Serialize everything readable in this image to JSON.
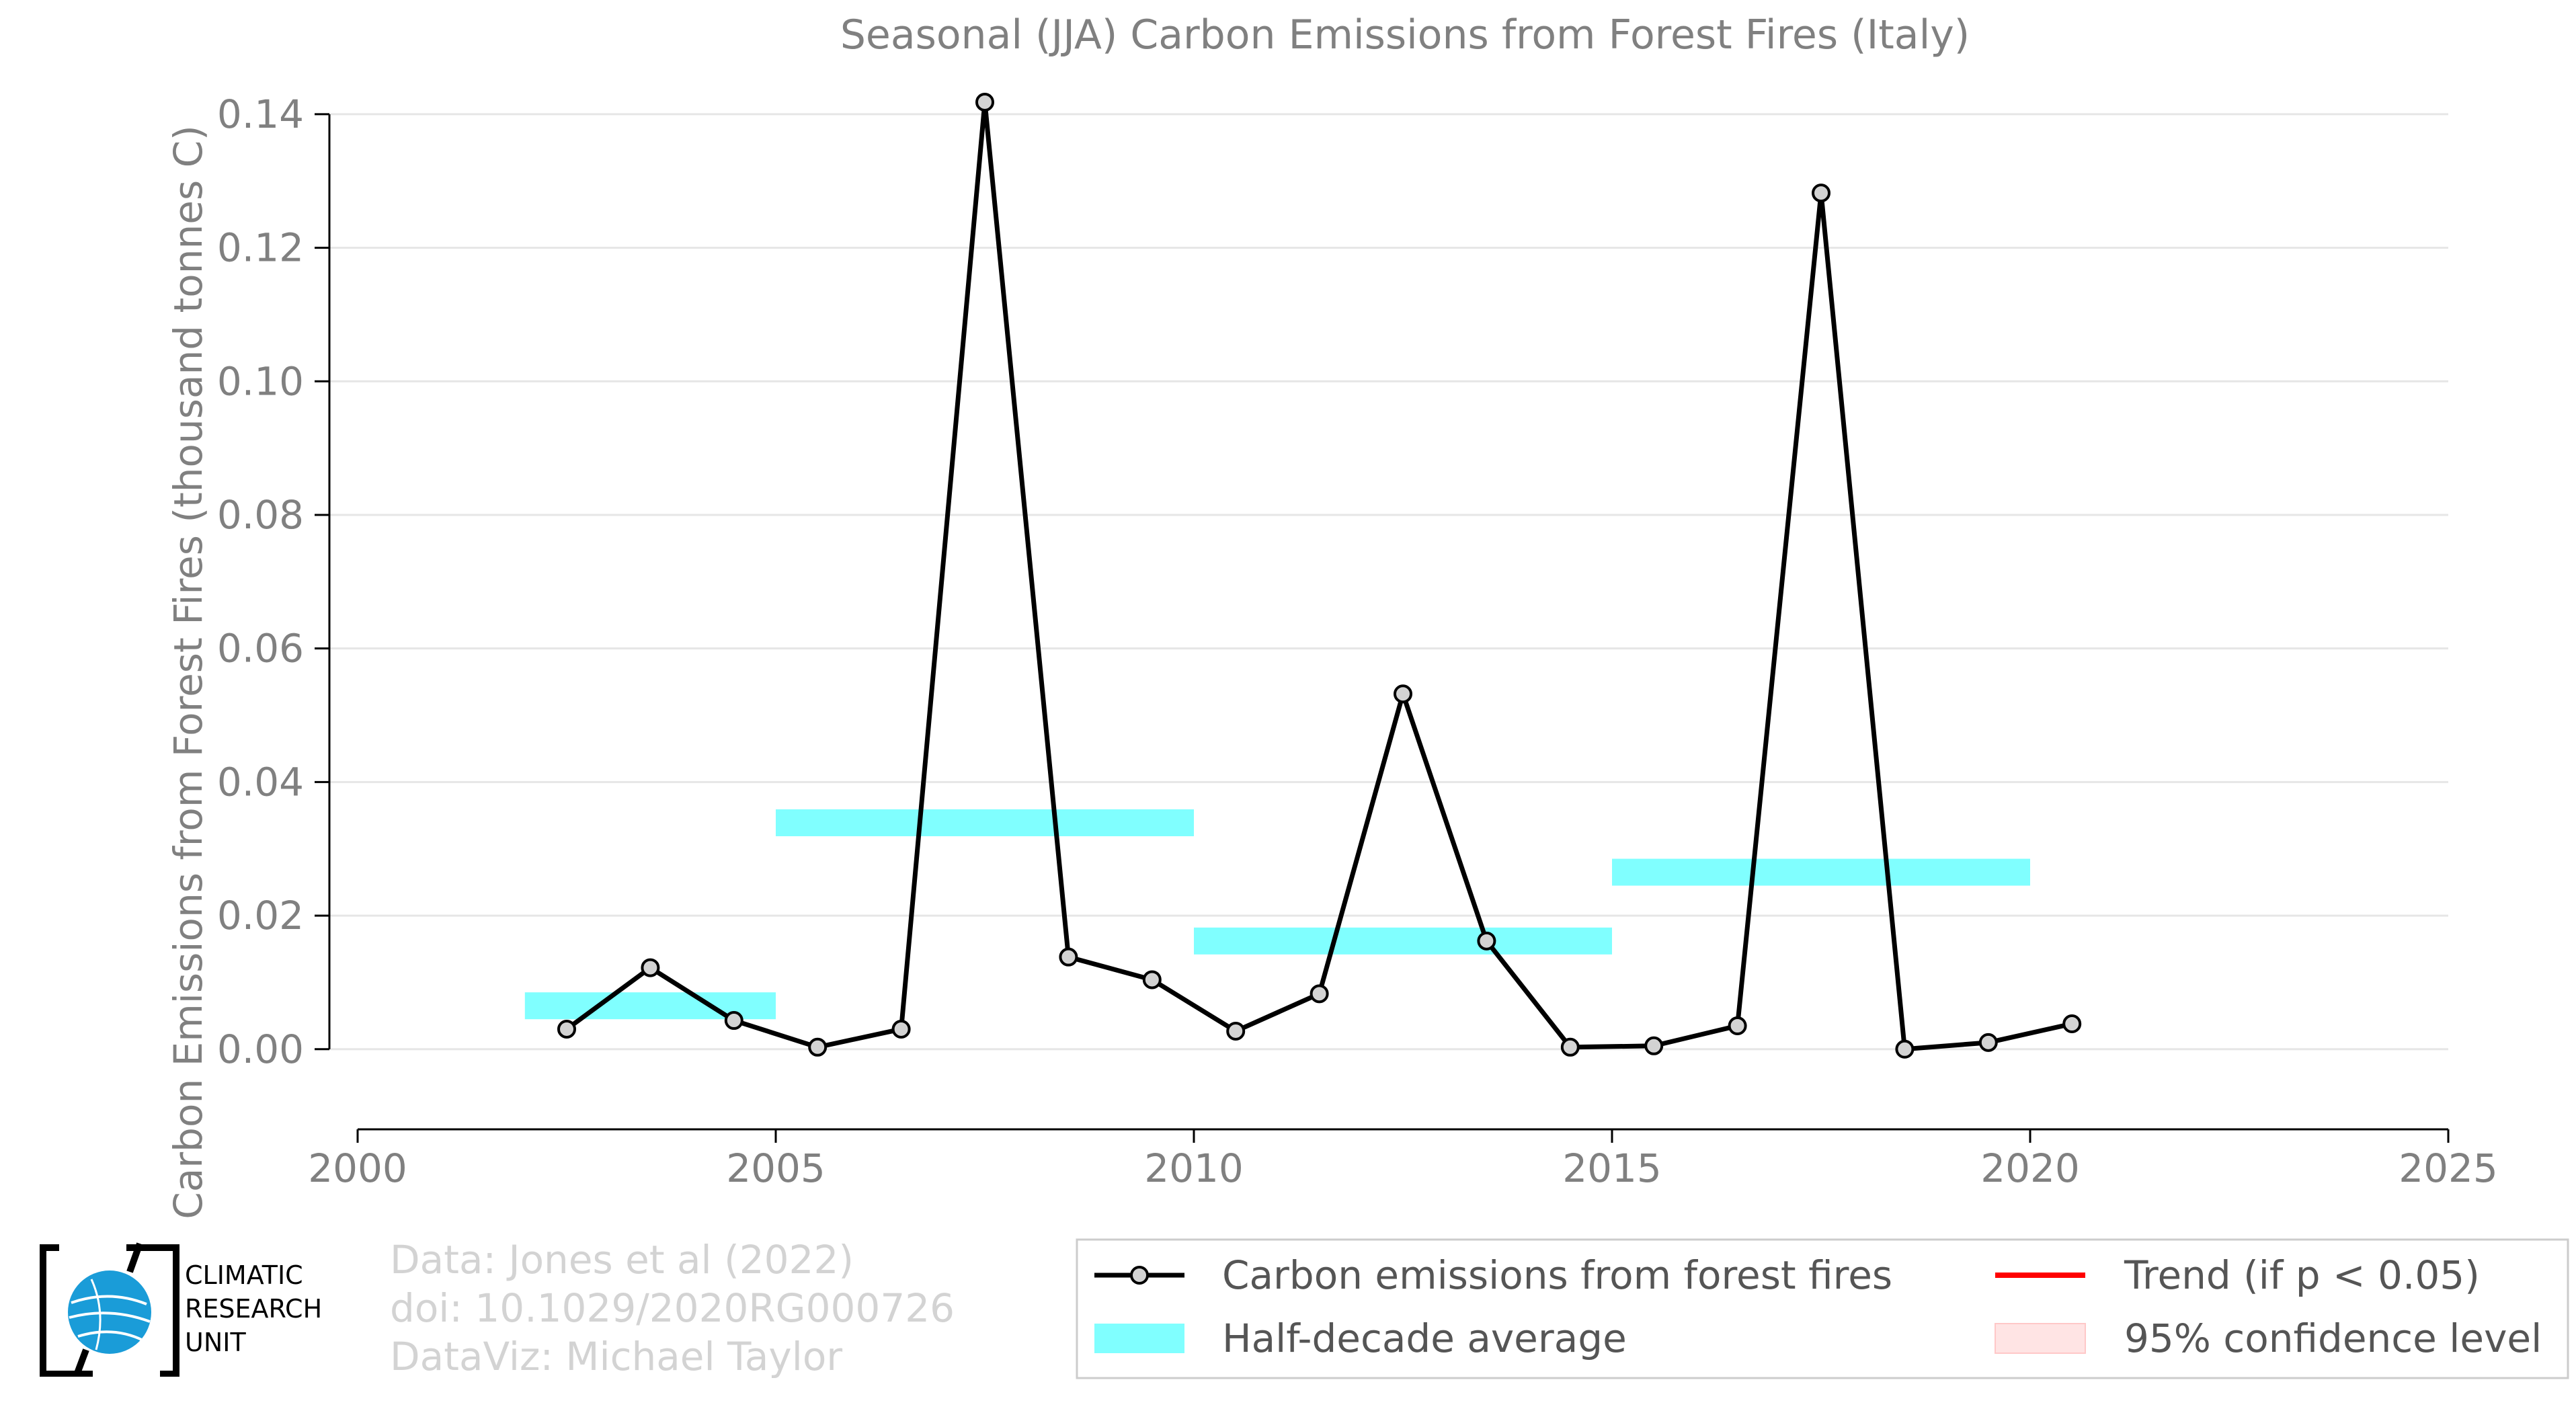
{
  "chart_data": {
    "type": "line",
    "title": "Seasonal (JJA) Carbon Emissions from Forest Fires (Italy)",
    "xlabel": "",
    "ylabel": "Carbon Emissions from Forest Fires (thousand tonnes C)",
    "xlim": [
      2000,
      2025
    ],
    "ylim": [
      -0.012,
      0.142
    ],
    "x_ticks": [
      "2000",
      "2005",
      "2010",
      "2015",
      "2020",
      "2025"
    ],
    "y_ticks": [
      "0.00",
      "0.02",
      "0.04",
      "0.06",
      "0.08",
      "0.10",
      "0.12",
      "0.14"
    ],
    "grid": "horizontal",
    "series": [
      {
        "name": "Carbon emissions from forest fires",
        "color": "#000000",
        "marker_fill": "#d3d3d3",
        "x": [
          2002.5,
          2003.5,
          2004.5,
          2005.5,
          2006.5,
          2007.5,
          2008.5,
          2009.5,
          2010.5,
          2011.5,
          2012.5,
          2013.5,
          2014.5,
          2015.5,
          2016.5,
          2017.5,
          2018.5,
          2019.5,
          2020.5
        ],
        "y": [
          0.003,
          0.0122,
          0.0043,
          0.0003,
          0.003,
          0.1418,
          0.0138,
          0.0104,
          0.0027,
          0.0083,
          0.0532,
          0.0162,
          0.0003,
          0.0005,
          0.0035,
          0.1282,
          0.0,
          0.001,
          0.0038
        ]
      }
    ],
    "half_decade_average": {
      "name": "Half-decade average",
      "color": "#80ffff",
      "segments": [
        {
          "x0": 2002,
          "x1": 2005,
          "y": 0.0065
        },
        {
          "x0": 2005,
          "x1": 2010,
          "y": 0.0339
        },
        {
          "x0": 2010,
          "x1": 2015,
          "y": 0.0162
        },
        {
          "x0": 2015,
          "x1": 2020,
          "y": 0.0265
        }
      ]
    },
    "legend": {
      "placement": "bottom-right",
      "items": [
        {
          "label": "Carbon emissions from forest fires",
          "kind": "line-marker",
          "color": "#000000"
        },
        {
          "label": "Trend (if p < 0.05)",
          "kind": "line",
          "color": "#ff0000"
        },
        {
          "label": "Half-decade average",
          "kind": "patch",
          "color": "#80ffff"
        },
        {
          "label": "95% confidence level",
          "kind": "patch",
          "color": "#ffe4e4"
        }
      ]
    }
  },
  "credits": {
    "line1": "Data: Jones et al (2022)",
    "line2": "doi: 10.1029/2020RG000726",
    "line3": "DataViz: Michael Taylor"
  },
  "logo": {
    "line1": "CLIMATIC",
    "line2": "RESEARCH",
    "line3": "UNIT",
    "icon": "globe-logo-icon"
  }
}
